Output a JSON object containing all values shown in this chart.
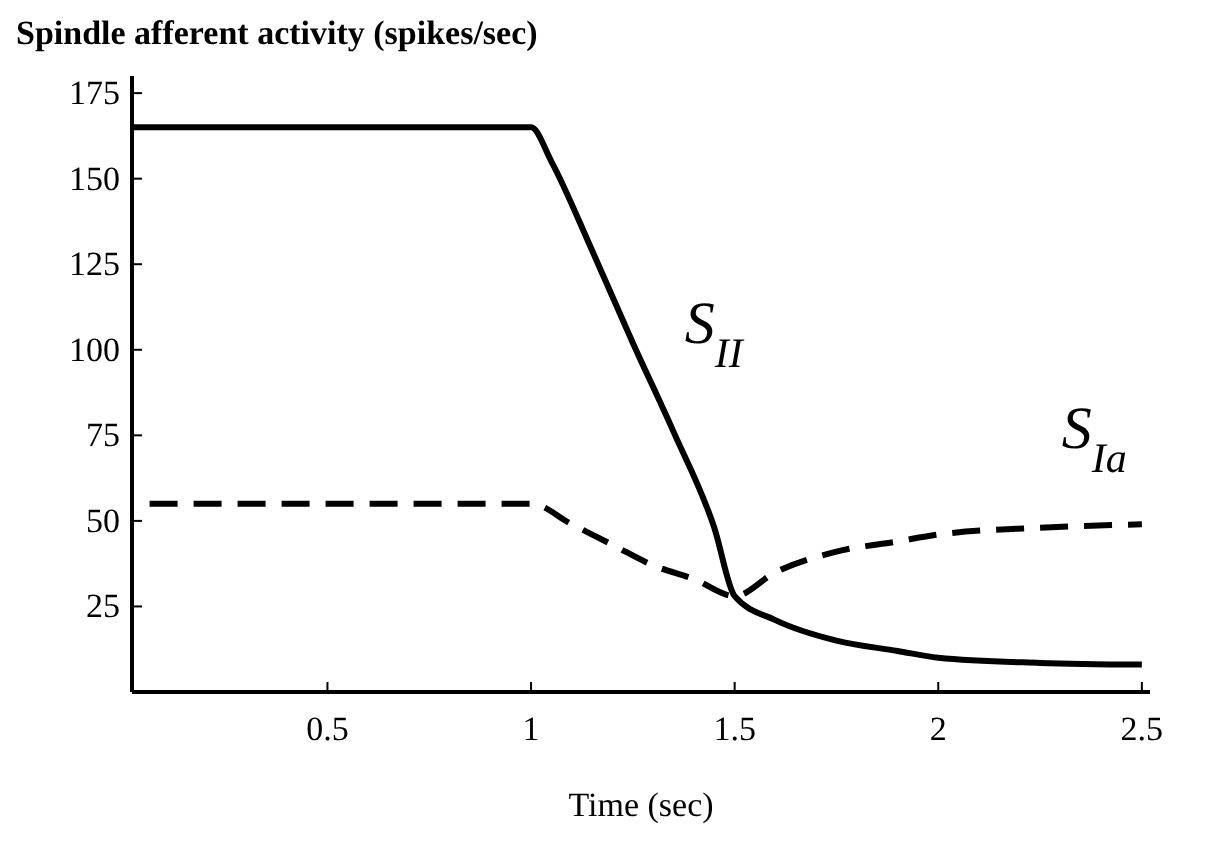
{
  "chart_data": {
    "type": "line",
    "title": "Spindle afferent activity (spikes/sec)",
    "xlabel": "Time (sec)",
    "xlim": [
      0.02,
      2.52
    ],
    "ylim": [
      0,
      180
    ],
    "xticks": [
      0.5,
      1,
      1.5,
      2,
      2.5
    ],
    "yticks": [
      25,
      50,
      75,
      100,
      125,
      150,
      175
    ],
    "grid": false,
    "series": [
      {
        "name": "S$_{II}$",
        "color": "#000000",
        "line_style": "solid",
        "x": [
          0.02,
          1,
          1.05,
          1.15,
          1.25,
          1.35,
          1.45,
          1.5,
          1.6,
          1.75,
          1.9,
          2,
          2.25,
          2.5
        ],
        "values": [
          165,
          165,
          155,
          129,
          102,
          76,
          48,
          28,
          21,
          15,
          12,
          10,
          8.5,
          8
        ]
      },
      {
        "name": "S$_{Ia}$",
        "color": "#000000",
        "line_style": "dashed",
        "x": [
          0.02,
          1,
          1.1,
          1.2,
          1.3,
          1.4,
          1.5,
          1.6,
          1.75,
          1.9,
          2,
          2.25,
          2.5
        ],
        "values": [
          55,
          55,
          49,
          43,
          37,
          33,
          28,
          35,
          41,
          44,
          46,
          48,
          49
        ]
      }
    ]
  }
}
